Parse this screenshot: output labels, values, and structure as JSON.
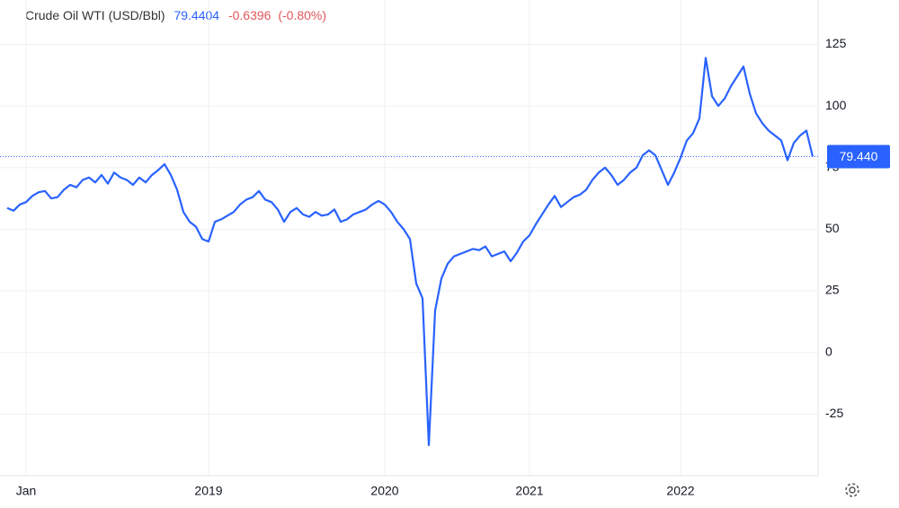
{
  "chart_data": {
    "type": "line",
    "title": "Crude Oil WTI (USD/Bbl)",
    "price": 79.4404,
    "change": "-0.6396",
    "change_pct": "(-0.80%)",
    "last_label": "79.440",
    "categories": [
      null,
      null,
      null,
      "Jan",
      null,
      null,
      null,
      null,
      null,
      null,
      null,
      null,
      null,
      null,
      null,
      null,
      null,
      null,
      null,
      null,
      null,
      null,
      null,
      null,
      null,
      null,
      null,
      null,
      null,
      null,
      null,
      null,
      "2019",
      null,
      null,
      null,
      null,
      null,
      null,
      null,
      null,
      null,
      null,
      null,
      null,
      null,
      null,
      null,
      null,
      null,
      null,
      null,
      null,
      null,
      null,
      null,
      null,
      null,
      null,
      null,
      "2020",
      null,
      null,
      null,
      null,
      null,
      null,
      null,
      null,
      null,
      null,
      null,
      null,
      null,
      null,
      null,
      null,
      null,
      null,
      null,
      null,
      null,
      null,
      "2021",
      null,
      null,
      null,
      null,
      null,
      null,
      null,
      null,
      null,
      null,
      null,
      null,
      null,
      null,
      null,
      null,
      null,
      null,
      null,
      null,
      null,
      null,
      null,
      "2022",
      null,
      null,
      null,
      null,
      null,
      null,
      null,
      null,
      null,
      null,
      null,
      null,
      null,
      null,
      null,
      null,
      null,
      null,
      null,
      null,
      null
    ],
    "series": [
      {
        "name": "Crude Oil WTI",
        "color": "#2962ff",
        "values": [
          58.6,
          57.5,
          60,
          61,
          63.5,
          65,
          65.5,
          62.5,
          63,
          66,
          68,
          67,
          70,
          71,
          69,
          72,
          68.5,
          73,
          71,
          70,
          68,
          71,
          69,
          72,
          74,
          76.4,
          72,
          66,
          57,
          53,
          51,
          46,
          45,
          53,
          54,
          55.5,
          57,
          60,
          62,
          63,
          65.5,
          62,
          61,
          58,
          53,
          57,
          58.6,
          56,
          55,
          57,
          55.5,
          56,
          58,
          53,
          54,
          56,
          57,
          58,
          60,
          61.5,
          60,
          57,
          53,
          50,
          46,
          28,
          22,
          -37.6,
          17,
          30,
          36,
          39,
          40,
          41,
          42,
          41.5,
          43,
          39,
          40,
          41,
          37,
          40.5,
          45,
          47.5,
          52,
          56,
          60,
          63.5,
          59,
          61,
          63,
          64,
          66,
          70,
          73,
          75,
          72,
          68,
          70,
          73,
          75,
          80,
          82,
          80,
          74,
          68,
          73,
          79,
          86,
          89,
          95,
          119.5,
          104,
          100,
          103,
          108,
          112,
          116,
          105,
          97,
          93,
          90,
          88,
          86,
          78,
          85,
          88,
          90,
          79.44
        ]
      }
    ],
    "ylim": [
      -50,
      143
    ],
    "yticks": [
      125,
      100,
      75,
      50,
      25,
      0,
      -25
    ],
    "grid": true
  }
}
